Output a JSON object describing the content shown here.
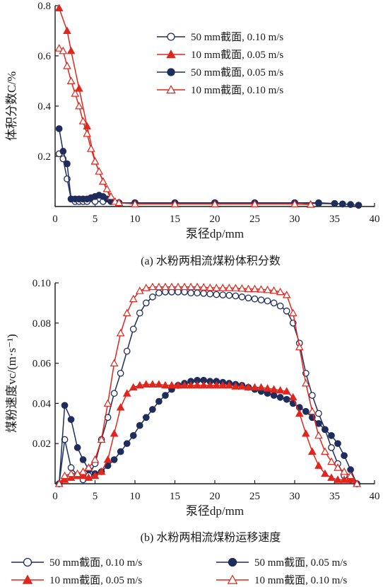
{
  "colors": {
    "navy": "#1f2d5c",
    "red": "#e0261d",
    "axis": "#1a1a1a"
  },
  "chart_data": [
    {
      "type": "line",
      "caption": "(a) 水粉两相流煤粉体积分数",
      "ylabel": "体积分数C/%",
      "xlabel": "泵径dp/mm",
      "xlim": [
        0,
        40
      ],
      "ylim": [
        0,
        0.8
      ],
      "xticks": [
        "0",
        "5",
        "10",
        "15",
        "20",
        "25",
        "30",
        "35",
        "40"
      ],
      "yticks": [
        "0.2",
        "0.4",
        "0.6",
        "0.8"
      ],
      "legend_position": "top-right",
      "series": [
        {
          "name": "50 mm截面, 0.10 m/s",
          "color": "#1f2d5c",
          "marker": "open-circle",
          "x": [
            0.5,
            1,
            1.5,
            2,
            2.5,
            3,
            3.5,
            4,
            5,
            6,
            7,
            8,
            10,
            15,
            20,
            25,
            30,
            33,
            36,
            38
          ],
          "y": [
            0.21,
            0.19,
            0.11,
            0.03,
            0.02,
            0.02,
            0.02,
            0.02,
            0.02,
            0.02,
            0.02,
            0.015,
            0.015,
            0.015,
            0.015,
            0.015,
            0.015,
            0.012,
            0.01,
            0.005
          ]
        },
        {
          "name": "10 mm截面, 0.05 m/s",
          "color": "#e0261d",
          "marker": "filled-triangle",
          "x": [
            0.5,
            1.5,
            2,
            3,
            4,
            5,
            6,
            7,
            8,
            10,
            15,
            20,
            25,
            30,
            32
          ],
          "y": [
            0.79,
            0.7,
            0.62,
            0.47,
            0.32,
            0.18,
            0.1,
            0.03,
            0.015,
            0.01,
            0.01,
            0.01,
            0.01,
            0.01,
            0.008
          ]
        },
        {
          "name": "50 mm截面, 0.05 m/s",
          "color": "#1f2d5c",
          "marker": "filled-circle",
          "x": [
            0.5,
            1,
            1.5,
            2,
            2.5,
            3,
            3.5,
            4,
            4.5,
            5,
            5.5,
            6,
            6.5,
            7,
            8,
            10,
            15,
            20,
            25,
            30,
            33,
            35,
            36,
            37,
            38
          ],
          "y": [
            0.31,
            0.22,
            0.17,
            0.03,
            0.03,
            0.03,
            0.03,
            0.03,
            0.035,
            0.04,
            0.045,
            0.04,
            0.03,
            0.02,
            0.015,
            0.015,
            0.015,
            0.015,
            0.015,
            0.015,
            0.015,
            0.012,
            0.01,
            0.008,
            0.005
          ]
        },
        {
          "name": "10 mm截面, 0.10 m/s",
          "color": "#e0261d",
          "marker": "open-triangle",
          "x": [
            0.5,
            1,
            1.5,
            2,
            2.5,
            3,
            3.5,
            4,
            4.5,
            5,
            5.5,
            6,
            6.5,
            7,
            7.5,
            8,
            10,
            15,
            20,
            25,
            30,
            32
          ],
          "y": [
            0.63,
            0.62,
            0.56,
            0.5,
            0.45,
            0.4,
            0.34,
            0.29,
            0.23,
            0.18,
            0.14,
            0.1,
            0.07,
            0.04,
            0.02,
            0.015,
            0.01,
            0.01,
            0.01,
            0.01,
            0.01,
            0.008
          ]
        }
      ]
    },
    {
      "type": "line",
      "caption": "(b) 水粉两相流煤粉运移速度",
      "ylabel": "煤粉速度vc/(m·s⁻¹)",
      "xlabel": "泵径dp/mm",
      "xlim": [
        0,
        40
      ],
      "ylim": [
        0,
        0.1
      ],
      "xticks": [
        "0",
        "5",
        "10",
        "15",
        "20",
        "25",
        "30",
        "35",
        "40"
      ],
      "yticks": [
        "0.02",
        "0.04",
        "0.06",
        "0.08",
        "0.10"
      ],
      "legend_position": "bottom",
      "series": [
        {
          "name": "50 mm截面, 0.10 m/s",
          "color": "#1f2d5c",
          "marker": "open-circle",
          "x": [
            0.5,
            1.2,
            2,
            2.8,
            3.5,
            4.2,
            5,
            5.8,
            6.6,
            7.4,
            8.2,
            9,
            9.8,
            10.6,
            11.4,
            12.2,
            13,
            13.8,
            14.6,
            15.4,
            16.2,
            17,
            17.8,
            18.6,
            19.4,
            20.2,
            21,
            21.8,
            22.6,
            23.4,
            24.2,
            25,
            25.8,
            26.6,
            27.4,
            28.2,
            29,
            29.8,
            30.6,
            31.4,
            32.2,
            33,
            33.8,
            34.6,
            35.4,
            36.2,
            37,
            37.8
          ],
          "y": [
            0.0,
            0.022,
            0.008,
            0.004,
            0.002,
            0.004,
            0.01,
            0.022,
            0.033,
            0.045,
            0.055,
            0.066,
            0.077,
            0.085,
            0.09,
            0.093,
            0.095,
            0.0955,
            0.0955,
            0.0955,
            0.0955,
            0.095,
            0.095,
            0.0948,
            0.0945,
            0.0942,
            0.094,
            0.0938,
            0.0935,
            0.093,
            0.0925,
            0.092,
            0.0915,
            0.091,
            0.09,
            0.0885,
            0.086,
            0.08,
            0.07,
            0.055,
            0.044,
            0.035,
            0.027,
            0.018,
            0.01,
            0.004,
            0.002,
            0.0
          ]
        },
        {
          "name": "50 mm截面, 0.05 m/s",
          "color": "#1f2d5c",
          "marker": "filled-circle",
          "x": [
            0.5,
            1.2,
            2,
            2.8,
            3.5,
            4.2,
            5,
            5.8,
            6.6,
            7.4,
            8.2,
            9,
            9.8,
            10.6,
            11.4,
            12.2,
            13,
            13.8,
            14.6,
            15.4,
            16.2,
            17,
            17.8,
            18.6,
            19.4,
            20.2,
            21,
            21.8,
            22.6,
            23.4,
            24.2,
            25,
            25.8,
            26.6,
            27.4,
            28.2,
            29,
            29.8,
            30.6,
            31.4,
            32.2,
            33,
            33.8,
            34.6,
            35.4,
            36.2,
            37,
            37.8
          ],
          "y": [
            0.0,
            0.039,
            0.032,
            0.018,
            0.012,
            0.007,
            0.005,
            0.006,
            0.009,
            0.012,
            0.016,
            0.02,
            0.024,
            0.029,
            0.033,
            0.037,
            0.041,
            0.044,
            0.047,
            0.049,
            0.05,
            0.051,
            0.0515,
            0.0515,
            0.051,
            0.051,
            0.0505,
            0.05,
            0.0495,
            0.049,
            0.048,
            0.047,
            0.046,
            0.045,
            0.044,
            0.043,
            0.042,
            0.04,
            0.038,
            0.036,
            0.033,
            0.03,
            0.027,
            0.024,
            0.02,
            0.014,
            0.007,
            0.0
          ]
        },
        {
          "name": "10 mm截面, 0.05 m/s",
          "color": "#e0261d",
          "marker": "filled-triangle",
          "x": [
            0.5,
            1.2,
            2,
            2.8,
            3.5,
            4.2,
            5,
            5.8,
            6.6,
            7.4,
            8.2,
            9,
            9.8,
            10.6,
            11.4,
            12.2,
            13,
            13.8,
            14.6,
            15.4,
            16.2,
            17,
            17.8,
            18.6,
            19.4,
            20.2,
            21,
            21.8,
            22.6,
            23.4,
            24.2,
            25,
            25.8,
            26.6,
            27.4,
            28.2,
            29,
            29.8,
            30.6,
            31.4,
            32.2,
            33,
            33.8,
            34.6,
            35.4,
            36.2,
            37,
            37.8
          ],
          "y": [
            0.0,
            0.002,
            0.003,
            0.004,
            0.004,
            0.003,
            0.004,
            0.006,
            0.012,
            0.025,
            0.038,
            0.045,
            0.048,
            0.049,
            0.0495,
            0.0495,
            0.0495,
            0.049,
            0.049,
            0.049,
            0.049,
            0.049,
            0.049,
            0.049,
            0.049,
            0.049,
            0.049,
            0.049,
            0.0485,
            0.0485,
            0.048,
            0.048,
            0.048,
            0.0475,
            0.047,
            0.0465,
            0.046,
            0.043,
            0.035,
            0.025,
            0.016,
            0.009,
            0.005,
            0.003,
            0.002,
            0.002,
            0.002,
            0.0
          ]
        },
        {
          "name": "10 mm截面, 0.10 m/s",
          "color": "#e0261d",
          "marker": "open-triangle",
          "x": [
            0.5,
            1.2,
            2,
            2.8,
            3.5,
            4.2,
            5,
            5.8,
            6.6,
            7.4,
            8.2,
            9,
            9.8,
            10.6,
            11.4,
            12.2,
            13,
            13.8,
            14.6,
            15.4,
            16.2,
            17,
            17.8,
            18.6,
            19.4,
            20.2,
            21,
            21.8,
            22.6,
            23.4,
            24.2,
            25,
            25.8,
            26.6,
            27.4,
            28.2,
            29,
            29.8,
            30.6,
            31.4,
            32.2,
            33,
            33.8,
            34.6,
            35.4,
            36.2,
            37,
            37.8
          ],
          "y": [
            0.0,
            0.004,
            0.005,
            0.005,
            0.006,
            0.008,
            0.012,
            0.022,
            0.04,
            0.06,
            0.075,
            0.085,
            0.092,
            0.096,
            0.0975,
            0.098,
            0.098,
            0.098,
            0.098,
            0.098,
            0.098,
            0.098,
            0.098,
            0.0978,
            0.0976,
            0.0975,
            0.0975,
            0.0975,
            0.0974,
            0.0972,
            0.097,
            0.097,
            0.0968,
            0.0965,
            0.0962,
            0.0955,
            0.094,
            0.085,
            0.068,
            0.05,
            0.036,
            0.024,
            0.016,
            0.011,
            0.008,
            0.006,
            0.004,
            0.0
          ]
        }
      ]
    }
  ]
}
